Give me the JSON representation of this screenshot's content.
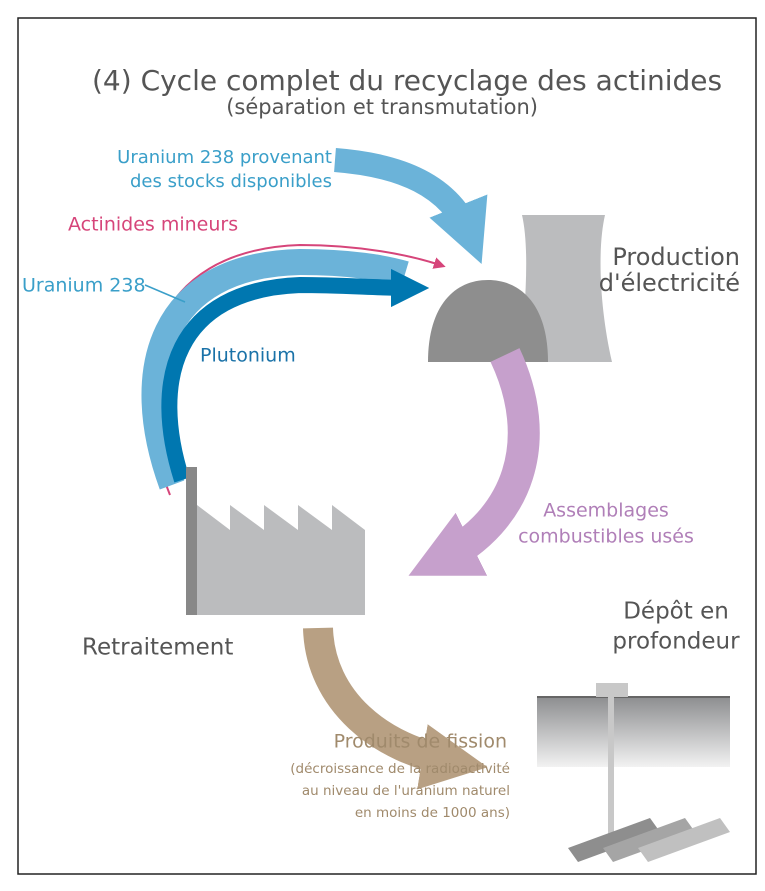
{
  "title": "(4) Cycle complet du recyclage des actinides",
  "subtitle": "(séparation et transmutation)",
  "flows": {
    "uranium_supply": [
      "Uranium 238 provenant",
      "des stocks disponibles"
    ],
    "minor_actinides": "Actinides mineurs",
    "uranium_238": "Uranium 238",
    "plutonium": "Plutonium",
    "spent_fuel": [
      "Assemblages",
      "combustibles usés"
    ],
    "fission_products": "Produits de fission",
    "fission_note": [
      "(décroissance de la radioactivité",
      "au niveau de l'uranium naturel",
      "en moins de 1000 ans)"
    ]
  },
  "nodes": {
    "production": [
      "Production",
      "d'électricité"
    ],
    "reprocessing": "Retraitement",
    "repository": [
      "Dépôt en",
      "profondeur"
    ]
  }
}
